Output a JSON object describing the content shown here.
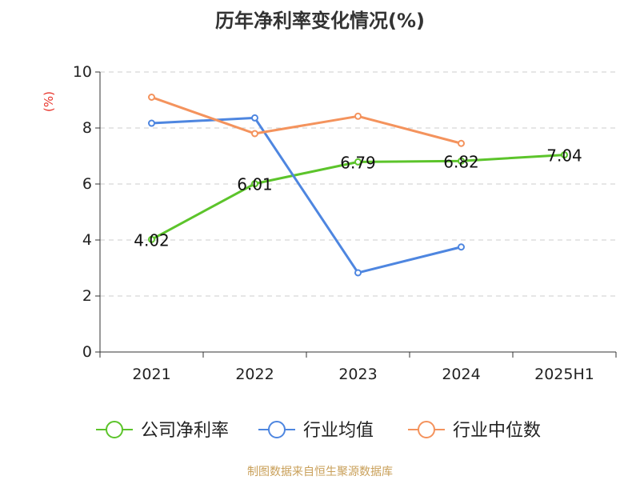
{
  "chart_data": {
    "type": "line",
    "title": "历年净利率变化情况(%)",
    "ylabel": "(%)",
    "xlabel": "",
    "ylim": [
      0,
      10
    ],
    "yticks": [
      0,
      2,
      4,
      6,
      8,
      10
    ],
    "categories": [
      "2021",
      "2022",
      "2023",
      "2024",
      "2025H1"
    ],
    "series": [
      {
        "name": "公司净利率",
        "color": "#5cc42b",
        "values": [
          4.02,
          6.01,
          6.79,
          6.82,
          7.04
        ],
        "labels": [
          "4.02",
          "6.01",
          "6.79",
          "6.82",
          "7.04"
        ]
      },
      {
        "name": "行业均值",
        "color": "#4e86e0",
        "values": [
          8.17,
          8.36,
          2.83,
          3.75,
          null
        ]
      },
      {
        "name": "行业中位数",
        "color": "#f4935d",
        "values": [
          9.1,
          7.8,
          8.42,
          7.45,
          null
        ]
      }
    ],
    "grid": true,
    "legend_position": "bottom"
  },
  "source": "制图数据来自恒生聚源数据库",
  "colors": {
    "axis": "#333333",
    "grid": "#cccccc",
    "ylabel": "#e8332a",
    "source": "#c9a05a"
  }
}
